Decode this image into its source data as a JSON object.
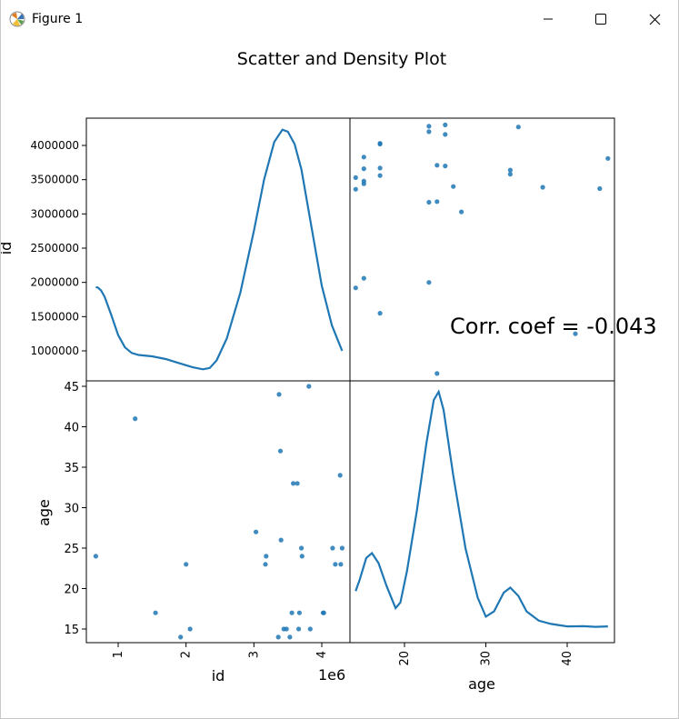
{
  "window": {
    "title": "Figure 1",
    "icons": {
      "app": "matplotlib-icon",
      "minimize": "minimize-icon",
      "maximize": "maximize-icon",
      "close": "close-icon"
    }
  },
  "chart_data": {
    "type": "scatter-matrix",
    "title": "Scatter and Density Plot",
    "variables": [
      "id",
      "age"
    ],
    "id_axis": {
      "kde_ticks": [
        1000000,
        1500000,
        2000000,
        2500000,
        3000000,
        3500000,
        4000000
      ],
      "kde_tick_labels": [
        "1000000",
        "1500000",
        "2000000",
        "2500000",
        "3000000",
        "3500000",
        "4000000"
      ],
      "scaled_ticks": [
        1,
        2,
        3,
        4
      ],
      "scaled_tick_labels": [
        "1",
        "2",
        "3",
        "4"
      ],
      "offset_label": "1e6",
      "xlabel": "id",
      "ylabel": "id"
    },
    "age_axis": {
      "ticks": [
        15,
        20,
        25,
        30,
        35,
        40,
        45
      ],
      "tick_labels": [
        "15",
        "20",
        "25",
        "30",
        "35",
        "40",
        "45"
      ],
      "xticks": [
        20,
        30,
        40
      ],
      "xtick_labels": [
        "20",
        "30",
        "40"
      ],
      "xlabel": "age",
      "ylabel": "age"
    },
    "annotation": "Corr. coef = -0.043",
    "color": "#1f77b4",
    "points": [
      {
        "id": 670000,
        "age": 24
      },
      {
        "id": 1250000,
        "age": 41
      },
      {
        "id": 1550000,
        "age": 17
      },
      {
        "id": 1920000,
        "age": 14
      },
      {
        "id": 2000000,
        "age": 23
      },
      {
        "id": 2060000,
        "age": 15
      },
      {
        "id": 3030000,
        "age": 27
      },
      {
        "id": 3170000,
        "age": 23
      },
      {
        "id": 3180000,
        "age": 24
      },
      {
        "id": 3360000,
        "age": 14
      },
      {
        "id": 3370000,
        "age": 44
      },
      {
        "id": 3390000,
        "age": 37
      },
      {
        "id": 3400000,
        "age": 26
      },
      {
        "id": 3440000,
        "age": 15
      },
      {
        "id": 3480000,
        "age": 15
      },
      {
        "id": 3530000,
        "age": 14
      },
      {
        "id": 3560000,
        "age": 17
      },
      {
        "id": 3580000,
        "age": 33
      },
      {
        "id": 3640000,
        "age": 33
      },
      {
        "id": 3660000,
        "age": 15
      },
      {
        "id": 3670000,
        "age": 17
      },
      {
        "id": 3700000,
        "age": 25
      },
      {
        "id": 3710000,
        "age": 24
      },
      {
        "id": 3810000,
        "age": 45
      },
      {
        "id": 3830000,
        "age": 15
      },
      {
        "id": 4020000,
        "age": 17
      },
      {
        "id": 4030000,
        "age": 17
      },
      {
        "id": 4160000,
        "age": 25
      },
      {
        "id": 4200000,
        "age": 23
      },
      {
        "id": 4270000,
        "age": 34
      },
      {
        "id": 4280000,
        "age": 23
      },
      {
        "id": 4300000,
        "age": 25
      }
    ],
    "kde_id": [
      [
        670000,
        1930000
      ],
      [
        700000,
        1925000
      ],
      [
        750000,
        1880000
      ],
      [
        800000,
        1790000
      ],
      [
        900000,
        1520000
      ],
      [
        1000000,
        1230000
      ],
      [
        1100000,
        1050000
      ],
      [
        1200000,
        970000
      ],
      [
        1300000,
        940000
      ],
      [
        1500000,
        920000
      ],
      [
        1700000,
        880000
      ],
      [
        1900000,
        820000
      ],
      [
        2100000,
        760000
      ],
      [
        2250000,
        730000
      ],
      [
        2350000,
        750000
      ],
      [
        2450000,
        860000
      ],
      [
        2600000,
        1180000
      ],
      [
        2800000,
        1850000
      ],
      [
        3000000,
        2750000
      ],
      [
        3150000,
        3500000
      ],
      [
        3300000,
        4050000
      ],
      [
        3420000,
        4230000
      ],
      [
        3500000,
        4200000
      ],
      [
        3600000,
        4020000
      ],
      [
        3700000,
        3650000
      ],
      [
        3850000,
        2800000
      ],
      [
        4000000,
        1950000
      ],
      [
        4150000,
        1370000
      ],
      [
        4300000,
        1000000
      ]
    ],
    "kde_age": [
      [
        14,
        0.011
      ],
      [
        14.5,
        0.0145
      ],
      [
        15.3,
        0.021
      ],
      [
        16,
        0.0225
      ],
      [
        16.8,
        0.0195
      ],
      [
        17.8,
        0.0125
      ],
      [
        18.9,
        0.0058
      ],
      [
        19.5,
        0.0075
      ],
      [
        20.3,
        0.017
      ],
      [
        21.5,
        0.035
      ],
      [
        22.7,
        0.056
      ],
      [
        23.6,
        0.069
      ],
      [
        24.2,
        0.0715
      ],
      [
        24.8,
        0.066
      ],
      [
        26,
        0.046
      ],
      [
        27.5,
        0.024
      ],
      [
        29,
        0.009
      ],
      [
        30,
        0.0032
      ],
      [
        31,
        0.0048
      ],
      [
        32.2,
        0.0105
      ],
      [
        33,
        0.012
      ],
      [
        34,
        0.0095
      ],
      [
        35,
        0.0048
      ],
      [
        36.5,
        0.002
      ],
      [
        38,
        0.001
      ],
      [
        40,
        0.00025
      ],
      [
        42,
        0.0003
      ],
      [
        43.5,
        0.0001
      ],
      [
        45,
        0.00025
      ]
    ]
  }
}
